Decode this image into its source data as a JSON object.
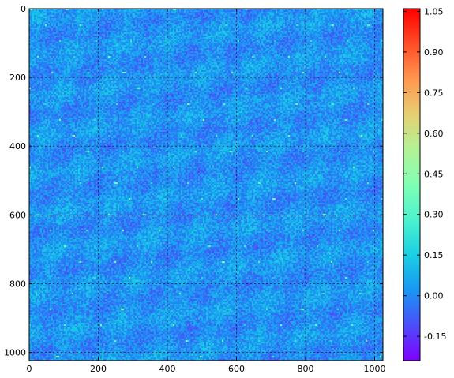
{
  "chart_data": {
    "type": "heatmap",
    "title": "",
    "xlabel": "",
    "ylabel": "",
    "colormap": "rainbow",
    "xlim": [
      0,
      1024
    ],
    "ylim": [
      1024,
      0
    ],
    "x_ticks": [
      0,
      200,
      400,
      600,
      800,
      1000
    ],
    "y_ticks": [
      0,
      200,
      400,
      600,
      800,
      1000
    ],
    "x_tick_labels": [
      "0",
      "200",
      "400",
      "600",
      "800",
      "1000"
    ],
    "y_tick_labels": [
      "0",
      "200",
      "400",
      "600",
      "800",
      "1000"
    ],
    "grid": true,
    "colorbar": {
      "vmin": -0.24,
      "vmax": 1.06,
      "ticks": [
        -0.15,
        0.0,
        0.15,
        0.3,
        0.45,
        0.6,
        0.75,
        0.9,
        1.05
      ],
      "tick_labels": [
        "-0.15",
        "0.00",
        "0.15",
        "0.30",
        "0.45",
        "0.60",
        "0.75",
        "0.90",
        "1.05"
      ]
    },
    "pattern": {
      "description_values": "noisy field mostly between -0.2 and 0.2 with periodic diagonal bright streaks",
      "base_value": 0.02,
      "noise_amplitude": 0.09,
      "period_x": 104,
      "period_y": 46,
      "streak_value": 0.4
    }
  },
  "colors": {
    "cmap_stops": [
      "#8000ff",
      "#4d4dfc",
      "#1996f3",
      "#1acfe3",
      "#4cf2ce",
      "#80ffb4",
      "#b3f296",
      "#e6cf73",
      "#ff964f",
      "#ff4d27",
      "#ff0000"
    ],
    "axes_edge": "#000000",
    "grid": "#000000"
  }
}
